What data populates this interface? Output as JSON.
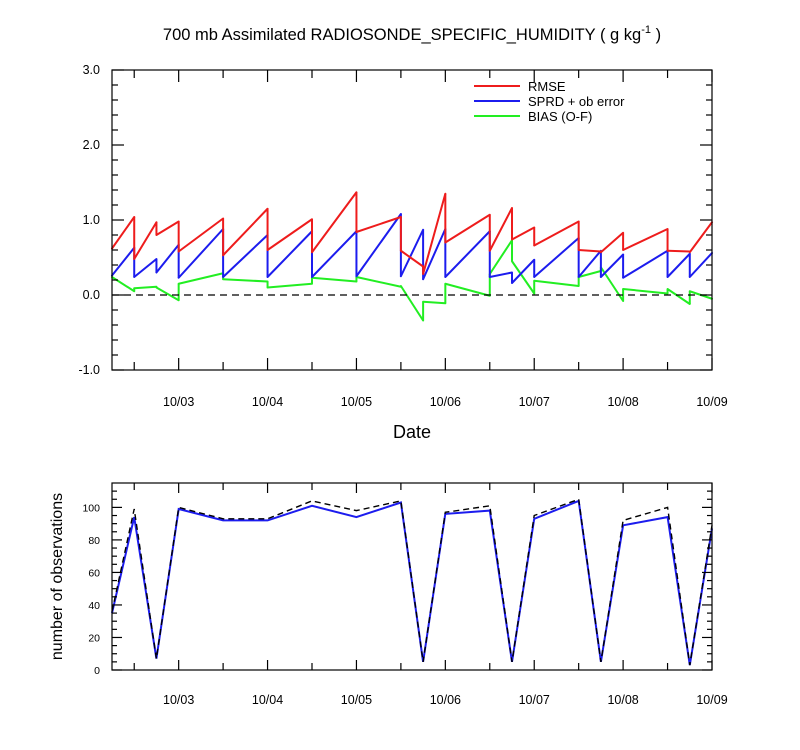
{
  "figure": {
    "title_main": "700 mb Assimilated RADIOSONDE_SPECIFIC_HUMIDITY ( g kg",
    "title_sup": "-1",
    "title_close": " )"
  },
  "chart_data": [
    {
      "type": "line",
      "xlabel": "Date",
      "ylabel": "",
      "ylim": [
        -1.0,
        3.0
      ],
      "yticks": [
        "-1.0",
        "0.0",
        "1.0",
        "2.0",
        "3.0"
      ],
      "xlim": [
        "10/02 06Z",
        "10/09 00Z"
      ],
      "xticks": [
        "10/03",
        "10/04",
        "10/05",
        "10/06",
        "10/07",
        "10/08",
        "10/09"
      ],
      "legend_position": "top-right",
      "zero_line": "dashed",
      "colors": {
        "RMSE": "#ee1c1c",
        "SPRD + ob error": "#1c1cee",
        "BIAS (O-F)": "#22ee22"
      },
      "series": [
        {
          "name": "RMSE",
          "segments": [
            {
              "x": [
                "10/02 06Z",
                "10/02 12Z"
              ],
              "y": [
                0.62,
                1.04
              ]
            },
            {
              "x": [
                "10/02 12Z",
                "10/02 18Z"
              ],
              "y": [
                0.48,
                0.97
              ]
            },
            {
              "x": [
                "10/02 18Z",
                "10/03 00Z"
              ],
              "y": [
                0.8,
                0.98
              ]
            },
            {
              "x": [
                "10/03 00Z",
                "10/03 12Z"
              ],
              "y": [
                0.58,
                1.02
              ]
            },
            {
              "x": [
                "10/03 12Z",
                "10/04 00Z"
              ],
              "y": [
                0.53,
                1.15
              ]
            },
            {
              "x": [
                "10/04 00Z",
                "10/04 12Z"
              ],
              "y": [
                0.6,
                1.01
              ]
            },
            {
              "x": [
                "10/04 12Z",
                "10/05 00Z"
              ],
              "y": [
                0.57,
                1.37
              ]
            },
            {
              "x": [
                "10/05 00Z",
                "10/05 12Z"
              ],
              "y": [
                0.84,
                1.04
              ]
            },
            {
              "x": [
                "10/05 12Z",
                "10/05 18Z"
              ],
              "y": [
                0.59,
                0.38
              ]
            },
            {
              "x": [
                "10/05 18Z",
                "10/06 00Z"
              ],
              "y": [
                0.28,
                1.35
              ]
            },
            {
              "x": [
                "10/06 00Z",
                "10/06 12Z"
              ],
              "y": [
                0.7,
                1.07
              ]
            },
            {
              "x": [
                "10/06 12Z",
                "10/06 18Z"
              ],
              "y": [
                0.59,
                1.16
              ]
            },
            {
              "x": [
                "10/06 18Z",
                "10/07 00Z"
              ],
              "y": [
                0.74,
                0.9
              ]
            },
            {
              "x": [
                "10/07 00Z",
                "10/07 12Z"
              ],
              "y": [
                0.66,
                0.98
              ]
            },
            {
              "x": [
                "10/07 12Z",
                "10/07 18Z"
              ],
              "y": [
                0.6,
                0.58
              ]
            },
            {
              "x": [
                "10/07 18Z",
                "10/08 00Z"
              ],
              "y": [
                0.57,
                0.83
              ]
            },
            {
              "x": [
                "10/08 00Z",
                "10/08 12Z"
              ],
              "y": [
                0.6,
                0.88
              ]
            },
            {
              "x": [
                "10/08 12Z",
                "10/08 18Z"
              ],
              "y": [
                0.59,
                0.58
              ]
            },
            {
              "x": [
                "10/08 18Z",
                "10/09 00Z"
              ],
              "y": [
                0.57,
                0.97
              ]
            }
          ]
        },
        {
          "name": "SPRD + ob error",
          "segments": [
            {
              "x": [
                "10/02 06Z",
                "10/02 12Z"
              ],
              "y": [
                0.26,
                0.63
              ]
            },
            {
              "x": [
                "10/02 12Z",
                "10/02 18Z"
              ],
              "y": [
                0.24,
                0.48
              ]
            },
            {
              "x": [
                "10/02 18Z",
                "10/03 00Z"
              ],
              "y": [
                0.3,
                0.67
              ]
            },
            {
              "x": [
                "10/03 00Z",
                "10/03 12Z"
              ],
              "y": [
                0.23,
                0.88
              ]
            },
            {
              "x": [
                "10/03 12Z",
                "10/04 00Z"
              ],
              "y": [
                0.24,
                0.8
              ]
            },
            {
              "x": [
                "10/04 00Z",
                "10/04 12Z"
              ],
              "y": [
                0.24,
                0.85
              ]
            },
            {
              "x": [
                "10/04 12Z",
                "10/05 00Z"
              ],
              "y": [
                0.24,
                0.85
              ]
            },
            {
              "x": [
                "10/05 00Z",
                "10/05 12Z"
              ],
              "y": [
                0.25,
                1.08
              ]
            },
            {
              "x": [
                "10/05 12Z",
                "10/05 18Z"
              ],
              "y": [
                0.25,
                0.87
              ]
            },
            {
              "x": [
                "10/05 18Z",
                "10/06 00Z"
              ],
              "y": [
                0.21,
                0.88
              ]
            },
            {
              "x": [
                "10/06 00Z",
                "10/06 12Z"
              ],
              "y": [
                0.24,
                0.85
              ]
            },
            {
              "x": [
                "10/06 12Z",
                "10/06 18Z"
              ],
              "y": [
                0.24,
                0.3
              ]
            },
            {
              "x": [
                "10/06 18Z",
                "10/07 00Z"
              ],
              "y": [
                0.16,
                0.47
              ]
            },
            {
              "x": [
                "10/07 00Z",
                "10/07 12Z"
              ],
              "y": [
                0.24,
                0.76
              ]
            },
            {
              "x": [
                "10/07 12Z",
                "10/07 18Z"
              ],
              "y": [
                0.24,
                0.59
              ]
            },
            {
              "x": [
                "10/07 18Z",
                "10/08 00Z"
              ],
              "y": [
                0.24,
                0.54
              ]
            },
            {
              "x": [
                "10/08 00Z",
                "10/08 12Z"
              ],
              "y": [
                0.23,
                0.59
              ]
            },
            {
              "x": [
                "10/08 12Z",
                "10/08 18Z"
              ],
              "y": [
                0.24,
                0.55
              ]
            },
            {
              "x": [
                "10/08 18Z",
                "10/09 00Z"
              ],
              "y": [
                0.24,
                0.56
              ]
            }
          ]
        },
        {
          "name": "BIAS (O-F)",
          "segments": [
            {
              "x": [
                "10/02 06Z",
                "10/02 12Z"
              ],
              "y": [
                0.24,
                0.05
              ]
            },
            {
              "x": [
                "10/02 12Z",
                "10/02 18Z"
              ],
              "y": [
                0.09,
                0.11
              ]
            },
            {
              "x": [
                "10/02 18Z",
                "10/03 00Z"
              ],
              "y": [
                0.1,
                -0.07
              ]
            },
            {
              "x": [
                "10/03 00Z",
                "10/03 12Z"
              ],
              "y": [
                0.15,
                0.29
              ]
            },
            {
              "x": [
                "10/03 12Z",
                "10/04 00Z"
              ],
              "y": [
                0.21,
                0.18
              ]
            },
            {
              "x": [
                "10/04 00Z",
                "10/04 12Z"
              ],
              "y": [
                0.1,
                0.15
              ]
            },
            {
              "x": [
                "10/04 12Z",
                "10/05 00Z"
              ],
              "y": [
                0.23,
                0.18
              ]
            },
            {
              "x": [
                "10/05 00Z",
                "10/05 12Z"
              ],
              "y": [
                0.24,
                0.11
              ]
            },
            {
              "x": [
                "10/05 12Z",
                "10/05 18Z"
              ],
              "y": [
                0.12,
                -0.34
              ]
            },
            {
              "x": [
                "10/05 18Z",
                "10/06 00Z"
              ],
              "y": [
                -0.09,
                -0.11
              ]
            },
            {
              "x": [
                "10/06 00Z",
                "10/06 12Z"
              ],
              "y": [
                0.15,
                -0.01
              ]
            },
            {
              "x": [
                "10/06 12Z",
                "10/06 18Z"
              ],
              "y": [
                0.28,
                0.73
              ]
            },
            {
              "x": [
                "10/06 18Z",
                "10/07 00Z"
              ],
              "y": [
                0.45,
                0.02
              ]
            },
            {
              "x": [
                "10/07 00Z",
                "10/07 12Z"
              ],
              "y": [
                0.19,
                0.12
              ]
            },
            {
              "x": [
                "10/07 12Z",
                "10/07 18Z"
              ],
              "y": [
                0.24,
                0.32
              ]
            },
            {
              "x": [
                "10/07 18Z",
                "10/08 00Z"
              ],
              "y": [
                0.37,
                -0.08
              ]
            },
            {
              "x": [
                "10/08 00Z",
                "10/08 12Z"
              ],
              "y": [
                0.08,
                0.02
              ]
            },
            {
              "x": [
                "10/08 12Z",
                "10/08 18Z"
              ],
              "y": [
                0.08,
                -0.12
              ]
            },
            {
              "x": [
                "10/08 18Z",
                "10/09 00Z"
              ],
              "y": [
                0.05,
                -0.05
              ]
            }
          ]
        }
      ]
    },
    {
      "type": "line",
      "xlabel": "",
      "ylabel": "number of observations",
      "ylim": [
        0,
        115
      ],
      "yticks": [
        "0",
        "20",
        "40",
        "60",
        "80",
        "100"
      ],
      "xticks": [
        "10/03",
        "10/04",
        "10/05",
        "10/06",
        "10/07",
        "10/08",
        "10/09"
      ],
      "x": [
        "10/02 06Z",
        "10/02 12Z",
        "10/02 18Z",
        "10/03 00Z",
        "10/03 12Z",
        "10/04 00Z",
        "10/04 12Z",
        "10/05 00Z",
        "10/05 12Z",
        "10/05 18Z",
        "10/06 00Z",
        "10/06 12Z",
        "10/06 18Z",
        "10/07 00Z",
        "10/07 12Z",
        "10/07 18Z",
        "10/08 00Z",
        "10/08 12Z",
        "10/08 18Z",
        "10/09 00Z"
      ],
      "colors": {
        "assimilated": "#1c1cee",
        "available": "#000000"
      },
      "series": [
        {
          "style": "solid",
          "values": [
            35,
            94,
            7,
            99,
            92,
            92,
            101,
            94,
            103,
            5,
            96,
            98,
            5,
            93,
            104,
            5,
            89,
            94,
            3,
            87
          ]
        },
        {
          "style": "dashed",
          "values": [
            36,
            99,
            7,
            100,
            93,
            93,
            104,
            98,
            104,
            5,
            97,
            101,
            5,
            95,
            105,
            5,
            92,
            100,
            3,
            89
          ]
        }
      ]
    }
  ]
}
